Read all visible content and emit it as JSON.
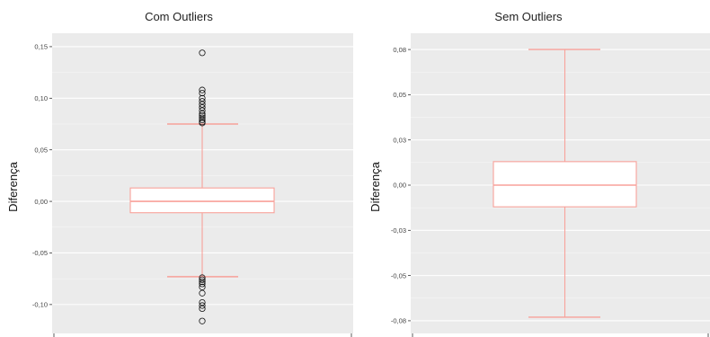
{
  "colors": {
    "panel_bg": "#EBEBEB",
    "grid": "#FFFFFF",
    "box_stroke": "#F8A19A",
    "box_fill": "#FFFFFF",
    "outlier_stroke": "#111111"
  },
  "chart_data": [
    {
      "type": "boxplot",
      "title": "Com Outliers",
      "ylabel": "Diferença",
      "xlabel": "",
      "ylim": [
        -0.128,
        0.163
      ],
      "grid": true,
      "yticks": [
        -0.1,
        -0.05,
        0.0,
        0.05,
        0.1,
        0.15
      ],
      "ytick_labels": [
        "-0,10",
        "-0,05",
        "0,00",
        "0,05",
        "0,10",
        "0,15"
      ],
      "box": {
        "whisker_low": -0.073,
        "q1": -0.011,
        "median": 0.0,
        "q3": 0.013,
        "whisker_high": 0.075
      },
      "outliers": [
        0.144,
        0.108,
        0.105,
        0.1,
        0.097,
        0.094,
        0.091,
        0.088,
        0.085,
        0.083,
        0.081,
        0.079,
        0.077,
        0.076,
        -0.074,
        -0.076,
        -0.078,
        -0.08,
        -0.083,
        -0.089,
        -0.098,
        -0.101,
        -0.104,
        -0.116
      ]
    },
    {
      "type": "boxplot",
      "title": "Sem Outliers",
      "ylabel": "Diferença",
      "xlabel": "",
      "ylim": [
        -0.082,
        0.084
      ],
      "grid": true,
      "yticks": [
        -0.075,
        -0.05,
        -0.025,
        0.0,
        0.025,
        0.05,
        0.075
      ],
      "ytick_labels": [
        "-0,08",
        "-0,05",
        "-0,03",
        "0,00",
        "0,03",
        "0,05",
        "0,08"
      ],
      "box": {
        "whisker_low": -0.073,
        "q1": -0.012,
        "median": 0.0,
        "q3": 0.013,
        "whisker_high": 0.075
      },
      "outliers": []
    }
  ]
}
